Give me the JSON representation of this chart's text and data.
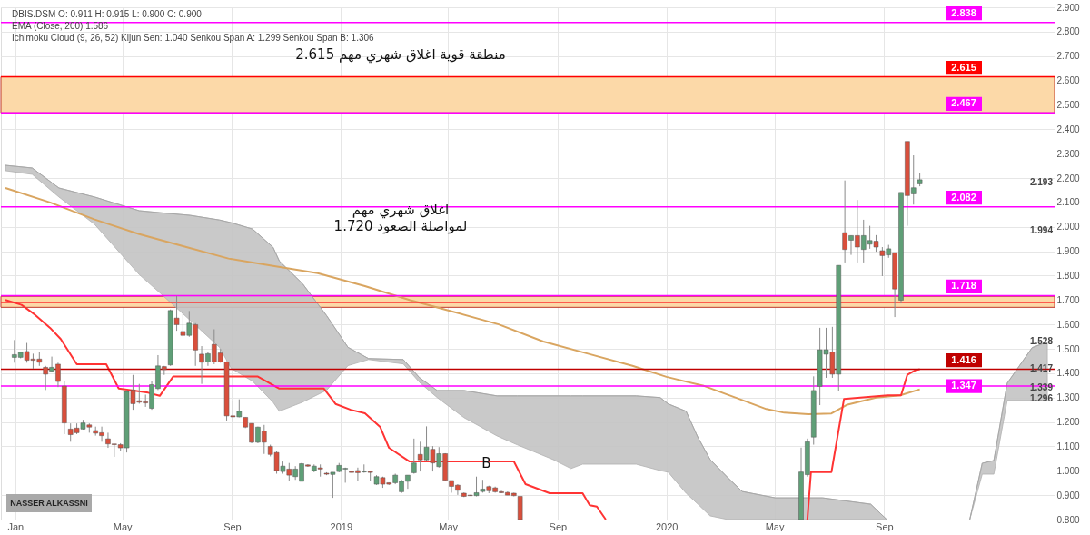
{
  "chart_data": {
    "type": "candlestick",
    "title": "DBIS.DSM   O: 0.911   H: 0.915   L: 0.900   C: 0.900",
    "x": [
      "2017-12-31",
      "2018-01-07",
      "2018-01-14",
      "2018-01-21",
      "2018-01-28",
      "2018-02-04",
      "2018-02-11",
      "2018-02-18",
      "2018-02-25",
      "2018-03-04",
      "2018-03-11",
      "2018-03-18",
      "2018-03-25",
      "2018-04-01",
      "2018-04-08",
      "2018-04-15",
      "2018-04-22",
      "2018-04-29",
      "2018-05-06",
      "2018-05-13",
      "2018-05-20",
      "2018-05-27",
      "2018-06-03",
      "2018-06-10",
      "2018-06-17",
      "2018-06-24",
      "2018-07-01",
      "2018-07-08",
      "2018-07-15",
      "2018-07-22",
      "2018-07-29",
      "2018-08-05",
      "2018-08-12",
      "2018-08-19",
      "2018-08-26",
      "2018-09-02",
      "2018-09-09",
      "2018-09-16",
      "2018-09-23",
      "2018-09-30",
      "2018-10-07",
      "2018-10-14",
      "2018-10-21",
      "2018-10-28",
      "2018-11-04",
      "2018-11-11",
      "2018-11-18",
      "2018-11-25",
      "2018-12-02",
      "2018-12-09",
      "2018-12-16",
      "2018-12-23",
      "2018-12-30",
      "2019-01-06",
      "2019-01-13",
      "2019-01-20",
      "2019-01-27",
      "2019-02-03",
      "2019-02-10",
      "2019-02-17",
      "2019-02-24",
      "2019-03-03",
      "2019-03-10",
      "2019-03-17",
      "2019-03-24",
      "2019-03-31",
      "2019-04-07",
      "2019-04-14",
      "2019-04-21",
      "2019-04-28",
      "2019-05-05",
      "2019-05-12",
      "2019-05-19",
      "2019-05-26",
      "2019-06-02",
      "2019-06-09",
      "2019-06-16",
      "2019-06-23",
      "2019-06-30",
      "2019-07-07",
      "2019-07-14",
      "2019-07-21",
      "2020-05-31",
      "2020-06-07",
      "2020-06-14",
      "2020-06-21",
      "2020-06-28",
      "2020-07-05",
      "2020-07-12",
      "2020-07-19",
      "2020-07-26",
      "2020-08-02",
      "2020-08-09",
      "2020-08-16",
      "2020-08-23",
      "2020-08-30",
      "2020-09-06",
      "2020-09-13",
      "2020-09-20",
      "2020-09-27",
      "2020-10-04",
      "2020-10-11"
    ],
    "ohlc": [
      [
        1.465,
        1.536,
        1.443,
        1.476
      ],
      [
        1.465,
        1.486,
        1.461,
        1.486
      ],
      [
        1.489,
        1.524,
        1.443,
        1.453
      ],
      [
        1.458,
        1.48,
        1.418,
        1.453
      ],
      [
        1.458,
        1.486,
        1.43,
        1.445
      ],
      [
        1.424,
        1.43,
        1.331,
        1.396
      ],
      [
        1.408,
        1.468,
        1.405,
        1.424
      ],
      [
        1.437,
        1.443,
        1.343,
        1.366
      ],
      [
        1.347,
        1.368,
        1.15,
        1.196
      ],
      [
        1.171,
        1.194,
        1.119,
        1.148
      ],
      [
        1.175,
        1.194,
        1.15,
        1.156
      ],
      [
        1.171,
        1.209,
        1.169,
        1.196
      ],
      [
        1.188,
        1.194,
        1.156,
        1.179
      ],
      [
        1.165,
        1.181,
        1.144,
        1.154
      ],
      [
        1.156,
        1.181,
        1.119,
        1.144
      ],
      [
        1.131,
        1.156,
        1.094,
        1.11
      ],
      [
        1.11,
        1.11,
        1.057,
        1.107
      ],
      [
        1.107,
        1.113,
        1.082,
        1.094
      ],
      [
        1.094,
        1.331,
        1.075,
        1.325
      ],
      [
        1.331,
        1.393,
        1.25,
        1.275
      ],
      [
        1.287,
        1.356,
        1.275,
        1.281
      ],
      [
        1.283,
        1.312,
        1.262,
        1.278
      ],
      [
        1.256,
        1.368,
        1.25,
        1.353
      ],
      [
        1.337,
        1.474,
        1.331,
        1.43
      ],
      [
        1.427,
        1.43,
        1.393,
        1.415
      ],
      [
        1.434,
        1.661,
        1.43,
        1.657
      ],
      [
        1.626,
        1.717,
        1.574,
        1.599
      ],
      [
        1.571,
        1.655,
        1.549,
        1.555
      ],
      [
        1.555,
        1.655,
        1.549,
        1.605
      ],
      [
        1.599,
        1.605,
        1.43,
        1.495
      ],
      [
        1.478,
        1.511,
        1.356,
        1.445
      ],
      [
        1.446,
        1.486,
        1.43,
        1.48
      ],
      [
        1.518,
        1.58,
        1.437,
        1.446
      ],
      [
        1.483,
        1.499,
        1.443,
        1.446
      ],
      [
        1.446,
        1.449,
        1.206,
        1.225
      ],
      [
        1.225,
        1.287,
        1.2,
        1.221
      ],
      [
        1.221,
        1.293,
        1.219,
        1.244
      ],
      [
        1.219,
        1.219,
        1.175,
        1.179
      ],
      [
        1.194,
        1.194,
        1.113,
        1.117
      ],
      [
        1.117,
        1.181,
        1.113,
        1.179
      ],
      [
        1.163,
        1.188,
        1.069,
        1.117
      ],
      [
        1.1,
        1.107,
        1.059,
        1.067
      ],
      [
        1.075,
        1.082,
        0.988,
        1.001
      ],
      [
        0.997,
        1.038,
        0.988,
        1.019
      ],
      [
        1.007,
        1.032,
        0.957,
        0.982
      ],
      [
        0.976,
        1.019,
        0.963,
        1.007
      ],
      [
        0.957,
        1.032,
        0.957,
        1.029
      ],
      [
        1.024,
        1.027,
        1.016,
        1.019
      ],
      [
        1.001,
        1.026,
        0.994,
        1.019
      ],
      [
        1.012,
        1.026,
        0.976,
        1.007
      ],
      [
        0.99,
        0.994,
        0.982,
        0.986
      ],
      [
        0.985,
        0.994,
        0.889,
        0.994
      ],
      [
        0.997,
        1.032,
        0.994,
        1.022
      ],
      [
        1.007,
        1.013,
        0.951,
        1.01
      ],
      [
        0.997,
        1.0,
        0.993,
        0.993
      ],
      [
        1.001,
        1.013,
        0.957,
        0.992
      ],
      [
        0.995,
        1.026,
        0.992,
        0.997
      ],
      [
        0.997,
        1.001,
        0.957,
        0.993
      ],
      [
        0.945,
        0.982,
        0.942,
        0.976
      ],
      [
        0.972,
        0.976,
        0.93,
        0.945
      ],
      [
        0.951,
        0.951,
        0.942,
        0.945
      ],
      [
        0.951,
        0.988,
        0.945,
        0.982
      ],
      [
        0.914,
        0.964,
        0.908,
        0.957
      ],
      [
        0.957,
        0.982,
        0.926,
        0.982
      ],
      [
        0.992,
        1.132,
        0.988,
        1.032
      ],
      [
        1.067,
        1.119,
        0.997,
        1.045
      ],
      [
        1.045,
        1.182,
        1.038,
        1.097
      ],
      [
        1.088,
        1.101,
        0.997,
        1.032
      ],
      [
        1.017,
        1.097,
        1.013,
        1.07
      ],
      [
        1.07,
        1.072,
        0.957,
        0.961
      ],
      [
        0.96,
        0.96,
        0.91,
        0.936
      ],
      [
        0.941,
        0.945,
        0.901,
        0.92
      ],
      [
        0.908,
        0.911,
        0.892,
        0.895
      ],
      [
        0.9,
        0.901,
        0.897,
        0.898
      ],
      [
        0.898,
        0.976,
        0.895,
        0.91
      ],
      [
        0.915,
        0.963,
        0.91,
        0.925
      ],
      [
        0.935,
        0.939,
        0.908,
        0.918
      ],
      [
        0.93,
        0.935,
        0.91,
        0.914
      ],
      [
        0.914,
        0.918,
        0.908,
        0.91
      ],
      [
        0.911,
        0.915,
        0.9,
        0.9
      ],
      [
        0.908,
        0.91,
        0.895,
        0.898
      ],
      [
        0.895,
        0.895,
        0.8,
        0.8
      ],
      [
        0.8,
        1.095,
        0.8,
        0.995
      ],
      [
        0.984,
        1.132,
        0.976,
        1.119
      ],
      [
        1.138,
        1.387,
        1.107,
        1.329
      ],
      [
        1.346,
        1.586,
        1.269,
        1.496
      ],
      [
        1.478,
        1.586,
        1.381,
        1.496
      ],
      [
        1.487,
        1.59,
        1.381,
        1.396
      ],
      [
        1.396,
        1.842,
        1.325,
        1.842
      ],
      [
        1.976,
        2.19,
        1.854,
        1.907
      ],
      [
        1.945,
        1.964,
        1.885,
        1.964
      ],
      [
        1.964,
        2.11,
        1.854,
        1.917
      ],
      [
        1.907,
        2.029,
        1.854,
        1.964
      ],
      [
        1.929,
        2.004,
        1.91,
        1.944
      ],
      [
        1.941,
        1.966,
        1.898,
        1.917
      ],
      [
        1.902,
        1.917,
        1.798,
        1.882
      ],
      [
        1.885,
        1.926,
        1.873,
        1.91
      ],
      [
        1.894,
        1.894,
        1.63,
        1.745
      ],
      [
        1.699,
        2.141,
        1.686,
        2.141
      ],
      [
        2.35,
        2.35,
        2.004,
        2.128
      ],
      [
        2.135,
        2.293,
        2.091,
        2.16
      ],
      [
        2.176,
        2.222,
        2.166,
        2.193
      ]
    ],
    "colors": [
      "#5f9f77",
      "#5f9f77",
      "#d94f3c",
      "#d94f3c",
      "#d94f3c",
      "#d94f3c",
      "#5f9f77",
      "#d94f3c",
      "#d94f3c",
      "#d94f3c",
      "#d94f3c",
      "#5f9f77",
      "#d94f3c",
      "#d94f3c",
      "#d94f3c",
      "#d94f3c",
      "#d94f3c",
      "#d94f3c",
      "#5f9f77",
      "#d94f3c",
      "#d94f3c",
      "#d94f3c",
      "#5f9f77",
      "#5f9f77",
      "#d94f3c",
      "#5f9f77",
      "#d94f3c",
      "#d94f3c",
      "#5f9f77",
      "#d94f3c",
      "#d94f3c",
      "#5f9f77",
      "#d94f3c",
      "#d94f3c",
      "#d94f3c",
      "#d94f3c",
      "#5f9f77",
      "#d94f3c",
      "#d94f3c",
      "#5f9f77",
      "#d94f3c",
      "#d94f3c",
      "#d94f3c",
      "#5f9f77",
      "#d94f3c",
      "#5f9f77",
      "#5f9f77",
      "#d94f3c",
      "#5f9f77",
      "#d94f3c",
      "#d94f3c",
      "#5f9f77",
      "#5f9f77",
      "#5f9f77",
      "#d94f3c",
      "#d94f3c",
      "#5f9f77",
      "#d94f3c",
      "#5f9f77",
      "#d94f3c",
      "#d94f3c",
      "#5f9f77",
      "#5f9f77",
      "#5f9f77",
      "#5f9f77",
      "#d94f3c",
      "#5f9f77",
      "#d94f3c",
      "#5f9f77",
      "#d94f3c",
      "#d94f3c",
      "#d94f3c",
      "#d94f3c",
      "#d94f3c",
      "#5f9f77",
      "#5f9f77",
      "#d94f3c",
      "#d94f3c",
      "#d94f3c",
      "#d94f3c",
      "#d94f3c",
      "#d94f3c",
      "#5f9f77",
      "#5f9f77",
      "#5f9f77",
      "#5f9f77",
      "#5f9f77",
      "#d94f3c",
      "#5f9f77",
      "#d94f3c",
      "#5f9f77",
      "#d94f3c",
      "#5f9f77",
      "#5f9f77",
      "#d94f3c",
      "#d94f3c",
      "#5f9f77",
      "#d94f3c",
      "#5f9f77",
      "#d94f3c",
      "#5f9f77",
      "#5f9f77"
    ],
    "series": [
      {
        "type": "line",
        "color": "#a8a8a8",
        "x": [
          "2017-12-21",
          "2018-01-20",
          "2018-02-19",
          "2018-03-31",
          "2018-05-20",
          "2018-06-12",
          "2018-07-16",
          "2018-08-18",
          "2018-08-31",
          "2018-09-24",
          "2018-10-17",
          "2018-10-24",
          "2018-11-19",
          "2018-12-16",
          "2019-01-09",
          "2019-02-01",
          "2019-03-12",
          "2019-03-30",
          "2019-04-19",
          "2019-05-19",
          "2019-06-25",
          "2019-07-18",
          "2019-08-27",
          "2019-09-16",
          "2019-09-29",
          "2019-11-28",
          "2019-12-25",
          "2020-01-03",
          "2020-01-23",
          "2020-02-05",
          "2020-02-19",
          "2020-03-10",
          "2020-03-26",
          "2020-05-02",
          "2020-06-24",
          "2020-08-17",
          "2020-09-04",
          "2020-09-20",
          "2020-12-06",
          "2020-12-20",
          "2021-01-02",
          "2021-01-17",
          "2021-02-14",
          "2021-03-03"
        ],
        "values": [
          2.252,
          2.241,
          2.159,
          2.122,
          2.066,
          2.058,
          2.047,
          2.028,
          2.017,
          1.991,
          1.916,
          1.86,
          1.767,
          1.636,
          1.506,
          1.46,
          1.456,
          1.382,
          1.329,
          1.329,
          1.307,
          1.307,
          1.307,
          1.307,
          1.307,
          1.307,
          1.3,
          1.274,
          1.244,
          1.139,
          1.046,
          0.971,
          0.915,
          0.889,
          0.889,
          0.863,
          0.8,
          null,
          0.8,
          1.031,
          1.042,
          1.359,
          1.505,
          1.528
        ],
        "upper": [
          2.252,
          2.241,
          2.159,
          2.122,
          2.066,
          2.058,
          2.047,
          2.028,
          2.017,
          1.991,
          1.916,
          1.86,
          1.767,
          1.636,
          1.506,
          1.46,
          1.456,
          1.382,
          1.329,
          1.329,
          1.307,
          1.307,
          1.307,
          1.307,
          1.307,
          1.307,
          1.3,
          1.274,
          1.244,
          1.139,
          1.046,
          0.971,
          0.915,
          0.889,
          0.889,
          0.863,
          0.8,
          null,
          0.8,
          1.031,
          1.042,
          1.359,
          1.505,
          1.528
        ],
        "lower": [
          2.23,
          2.215,
          2.122,
          2.01,
          1.804,
          1.73,
          1.617,
          1.506,
          1.42,
          1.367,
          1.281,
          1.244,
          1.281,
          1.33,
          1.431,
          1.456,
          1.438,
          1.363,
          1.3,
          1.218,
          1.143,
          1.106,
          1.046,
          1.009,
          1.027,
          1.027,
          1.001,
          0.994,
          0.908,
          0.864,
          0.815,
          0.8,
          0.8,
          0.8,
          0.8,
          0.8,
          0.8,
          null,
          0.8,
          0.986,
          0.986,
          1.288,
          1.288,
          1.288
        ]
      },
      {
        "type": "line",
        "color": "#d9a560",
        "x": [
          "2017-12-21",
          "2018-02-09",
          "2018-03-31",
          "2018-05-20",
          "2018-07-09",
          "2018-08-28",
          "2018-10-17",
          "2018-12-06",
          "2019-01-28",
          "2019-03-19",
          "2019-05-08",
          "2019-06-27",
          "2019-08-16",
          "2019-10-05",
          "2019-11-24",
          "2020-01-01",
          "2020-02-12",
          "2020-03-23",
          "2020-04-22",
          "2020-05-12",
          "2020-06-08",
          "2020-07-04",
          "2020-07-21",
          "2020-08-23",
          "2020-09-19",
          "2020-10-11"
        ],
        "values": [
          2.159,
          2.1,
          2.03,
          1.97,
          1.92,
          1.87,
          1.84,
          1.81,
          1.757,
          1.7,
          1.651,
          1.6,
          1.53,
          1.48,
          1.43,
          1.385,
          1.348,
          1.294,
          1.253,
          1.238,
          1.232,
          1.235,
          1.27,
          1.3,
          1.309,
          1.334
        ]
      },
      {
        "type": "line",
        "color": "#ff3333",
        "x": [
          "2017-12-21",
          "2018-01-08",
          "2018-01-23",
          "2018-02-09",
          "2018-02-21",
          "2018-03-11",
          "2018-04-13",
          "2018-04-27",
          "2018-05-30",
          "2018-06-12",
          "2018-06-27",
          "2018-09-30",
          "2018-10-24",
          "2018-12-13",
          "2018-12-26",
          "2019-01-12",
          "2019-01-28",
          "2019-02-14",
          "2019-02-24",
          "2019-03-19",
          "2019-07-14",
          "2019-07-27",
          "2019-08-23",
          "2019-09-29",
          "2019-10-07",
          "2019-10-15",
          "2019-10-25",
          "2020-01-01",
          "2020-06-07",
          "2020-06-11",
          "2020-07-04",
          "2020-07-18",
          "2020-09-05",
          "2020-09-20",
          "2020-09-27",
          "2020-10-06",
          "2020-10-11"
        ],
        "values": [
          1.7,
          1.68,
          1.64,
          1.586,
          1.54,
          1.437,
          1.437,
          1.337,
          1.32,
          1.307,
          1.386,
          1.386,
          1.337,
          1.337,
          1.274,
          1.25,
          1.236,
          1.18,
          1.094,
          1.038,
          1.038,
          0.945,
          0.908,
          0.908,
          0.859,
          0.853,
          0.8,
          null,
          0.8,
          0.995,
          0.995,
          1.294,
          1.309,
          1.309,
          1.393,
          1.412,
          1.416
        ]
      }
    ],
    "bands": [
      {
        "axis": "y",
        "from": 2.467,
        "to": 2.615,
        "color": "#fcd9a8"
      },
      {
        "axis": "y",
        "from": 1.67,
        "to": 1.715,
        "color": "#fcd9a8"
      }
    ],
    "ref_lines": [
      {
        "axis": "y",
        "value": 2.838,
        "label": "2.838",
        "color": "#ff00ff"
      },
      {
        "axis": "y",
        "value": 2.615,
        "label": "2.615",
        "color": "#ff0000"
      },
      {
        "axis": "y",
        "value": 2.467,
        "label": "2.467",
        "color": "#ff00ff"
      },
      {
        "axis": "y",
        "value": 2.082,
        "label": "2.082",
        "color": "#ff00ff"
      },
      {
        "axis": "y",
        "value": 1.718,
        "label": "1.718",
        "color": "#ff00ff"
      },
      {
        "axis": "y",
        "value": 1.69,
        "color": "#ff3030"
      },
      {
        "axis": "y",
        "value": 1.416,
        "label": "1.416",
        "color": "#c00000"
      },
      {
        "axis": "y",
        "value": 1.347,
        "label": "1.347",
        "color": "#ff00ff"
      }
    ],
    "annotations": [
      "EMA  (Close, 200)  1.586",
      "Ichimoku Cloud  (9, 26, 52)   Kijun Sen:  1.040   Senkou Span A:  1.299   Senkou Span B:  1.306",
      "NASSER ALKASSNI",
      "منطقة قوية اغلاق شهري مهم 2.615",
      "اغلاق شهري مهم",
      "لمواصلة الصعود 1.720",
      "2.193",
      "1.994",
      {
        "text": "B",
        "x": "2019-06-13",
        "y": 1.03
      },
      {
        "text": "1.528",
        "y": 1.528
      },
      {
        "text": "1.417",
        "y": 1.417
      },
      {
        "text": "1.339",
        "y": 1.339
      },
      {
        "text": "1.296",
        "y": 1.296
      }
    ],
    "xlim": [
      "2017-12-21",
      "2021-03-06"
    ],
    "xticks": [
      {
        "value": "2018-01-01",
        "label": "Jan"
      },
      {
        "value": "2018-05-01",
        "label": "May"
      },
      {
        "value": "2018-09-01",
        "label": "Sep"
      },
      {
        "value": "2019-01-01",
        "label": "2019"
      },
      {
        "value": "2019-05-01",
        "label": "May"
      },
      {
        "value": "2019-09-01",
        "label": "Sep"
      },
      {
        "value": "2020-01-01",
        "label": "2020"
      },
      {
        "value": "2020-05-01",
        "label": "May"
      },
      {
        "value": "2020-09-01",
        "label": "Sep"
      }
    ],
    "ylim": [
      0.8,
      2.9
    ],
    "yticks": [
      {
        "value": 0.8,
        "label": "0.800"
      },
      {
        "value": 0.9,
        "label": "0.900"
      },
      {
        "value": 1,
        "label": "1.000"
      },
      {
        "value": 1.1,
        "label": "1.100"
      },
      {
        "value": 1.2,
        "label": "1.200"
      },
      {
        "value": 1.3,
        "label": "1.300"
      },
      {
        "value": 1.4,
        "label": "1.400"
      },
      {
        "value": 1.5,
        "label": "1.500"
      },
      {
        "value": 1.6,
        "label": "1.600"
      },
      {
        "value": 1.7,
        "label": "1.700"
      },
      {
        "value": 1.8,
        "label": "1.800"
      },
      {
        "value": 1.9,
        "label": "1.900"
      },
      {
        "value": 2,
        "label": "2.000"
      },
      {
        "value": 2.1,
        "label": "2.100"
      },
      {
        "value": 2.2,
        "label": "2.200"
      },
      {
        "value": 2.3,
        "label": "2.300"
      },
      {
        "value": 2.4,
        "label": "2.400"
      },
      {
        "value": 2.5,
        "label": "2.500"
      },
      {
        "value": 2.6,
        "label": "2.600"
      },
      {
        "value": 2.7,
        "label": "2.700"
      },
      {
        "value": 2.8,
        "label": "2.800"
      },
      {
        "value": 2.9,
        "label": "2.900"
      }
    ],
    "grid": true
  }
}
